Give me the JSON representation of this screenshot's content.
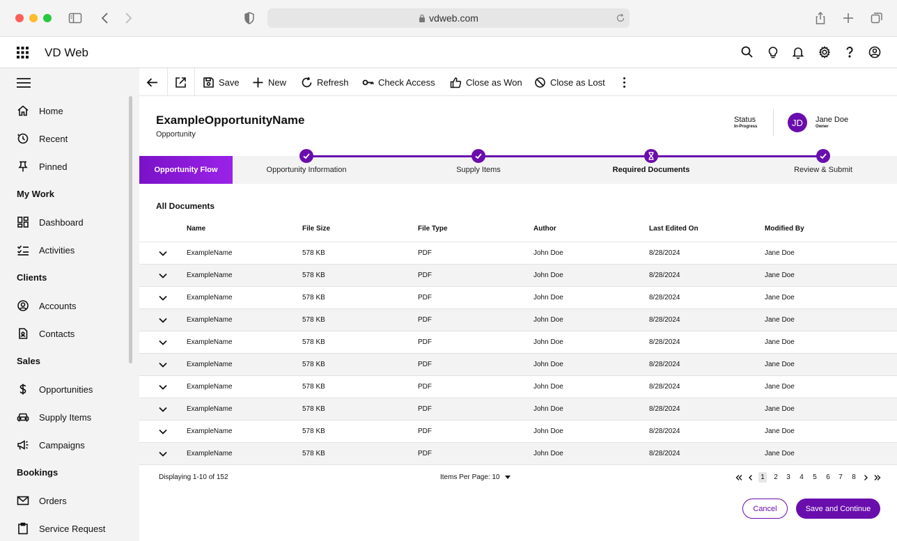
{
  "browser": {
    "url": "vdweb.com",
    "traffic_colors": [
      "#ff5f57",
      "#febc2e",
      "#28c840"
    ]
  },
  "app": {
    "title": "VD Web",
    "accent": "#6a0dad"
  },
  "header_icons": [
    "search-icon",
    "lightbulb-icon",
    "bell-icon",
    "gear-icon",
    "help-icon",
    "profile-icon"
  ],
  "sidebar": {
    "items": [
      {
        "label": "Home",
        "icon": "home-icon"
      },
      {
        "label": "Recent",
        "icon": "clock-icon"
      },
      {
        "label": "Pinned",
        "icon": "pin-icon"
      },
      {
        "group": "My Work"
      },
      {
        "label": "Dashboard",
        "icon": "dashboard-icon"
      },
      {
        "label": "Activities",
        "icon": "checklist-icon"
      },
      {
        "group": "Clients"
      },
      {
        "label": "Accounts",
        "icon": "account-icon"
      },
      {
        "label": "Contacts",
        "icon": "contact-icon"
      },
      {
        "group": "Sales"
      },
      {
        "label": "Opportunities",
        "icon": "dollar-icon"
      },
      {
        "label": "Supply Items",
        "icon": "car-icon"
      },
      {
        "label": "Campaigns",
        "icon": "megaphone-icon"
      },
      {
        "group": "Bookings"
      },
      {
        "label": "Orders",
        "icon": "mail-icon"
      },
      {
        "label": "Service Request",
        "icon": "clipboard-icon"
      }
    ]
  },
  "toolbar": {
    "save": "Save",
    "new": "New",
    "refresh": "Refresh",
    "check_access": "Check Access",
    "close_won": "Close as Won",
    "close_lost": "Close as Lost"
  },
  "record": {
    "title": "ExampleOpportunityName",
    "type": "Opportunity",
    "status_label": "Status",
    "status_value": "In-Progress",
    "owner_initials": "JD",
    "owner_name": "Jane Doe",
    "owner_role": "Owner"
  },
  "flow": {
    "tab_label": "Opportunity Flow",
    "steps": [
      {
        "label": "Opportunity Information",
        "state": "done"
      },
      {
        "label": "Supply Items",
        "state": "done"
      },
      {
        "label": "Required Documents",
        "state": "current"
      },
      {
        "label": "Review & Submit",
        "state": "done"
      }
    ]
  },
  "table": {
    "title": "All Documents",
    "columns": [
      "Name",
      "File Size",
      "File Type",
      "Author",
      "Last Edited On",
      "Modified By"
    ],
    "rows": [
      [
        "ExampleName",
        "578 KB",
        "PDF",
        "John Doe",
        "8/28/2024",
        "Jane Doe"
      ],
      [
        "ExampleName",
        "578 KB",
        "PDF",
        "John Doe",
        "8/28/2024",
        "Jane Doe"
      ],
      [
        "ExampleName",
        "578 KB",
        "PDF",
        "John Doe",
        "8/28/2024",
        "Jane Doe"
      ],
      [
        "ExampleName",
        "578 KB",
        "PDF",
        "John Doe",
        "8/28/2024",
        "Jane Doe"
      ],
      [
        "ExampleName",
        "578 KB",
        "PDF",
        "John Doe",
        "8/28/2024",
        "Jane Doe"
      ],
      [
        "ExampleName",
        "578 KB",
        "PDF",
        "John Doe",
        "8/28/2024",
        "Jane Doe"
      ],
      [
        "ExampleName",
        "578 KB",
        "PDF",
        "John Doe",
        "8/28/2024",
        "Jane Doe"
      ],
      [
        "ExampleName",
        "578 KB",
        "PDF",
        "John Doe",
        "8/28/2024",
        "Jane Doe"
      ],
      [
        "ExampleName",
        "578 KB",
        "PDF",
        "John Doe",
        "8/28/2024",
        "Jane Doe"
      ],
      [
        "ExampleName",
        "578 KB",
        "PDF",
        "John Doe",
        "8/28/2024",
        "Jane Doe"
      ]
    ]
  },
  "footer": {
    "displaying": "Displaying 1-10 of 152",
    "items_per_page": "Items Per Page: 10",
    "pages": [
      "1",
      "2",
      "3",
      "4",
      "5",
      "6",
      "7",
      "8"
    ],
    "current_page": "1",
    "cancel": "Cancel",
    "save_continue": "Save and Continue"
  }
}
